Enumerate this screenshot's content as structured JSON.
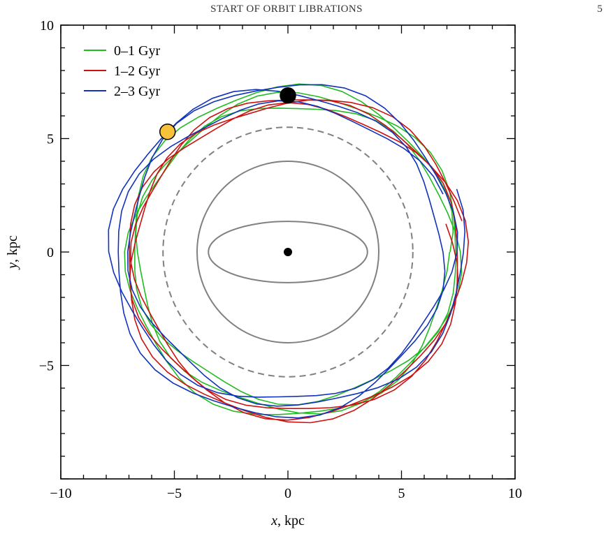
{
  "header": {
    "running_title": "START OF ORBIT LIBRATIONS",
    "page_number": "5"
  },
  "chart_data": {
    "type": "line",
    "xlabel_var": "x",
    "xlabel_unit": ", kpc",
    "ylabel_var": "y",
    "ylabel_unit": ", kpc",
    "xlim": [
      -10,
      10
    ],
    "ylim": [
      -10,
      10
    ],
    "xticks": [
      -10,
      -5,
      0,
      5,
      10
    ],
    "yticks": [
      -5,
      0,
      5,
      10
    ],
    "xtick_labels": [
      "−10",
      "−5",
      "0",
      "5",
      "10"
    ],
    "ytick_labels": [
      "−5",
      "0",
      "5",
      "10"
    ],
    "grid": false,
    "legend_position": "top-left",
    "series": [
      {
        "name": "0–1 Gyr",
        "color": "#22bb22",
        "orbit": {
          "radius_mean": 7.0,
          "libration_amplitude": 0.45,
          "libration_period_turns": 3.3,
          "phase": 0.0,
          "turns": 3.0,
          "ellipticity": 0.02
        }
      },
      {
        "name": "1–2 Gyr",
        "color": "#cc1111",
        "orbit": {
          "radius_mean": 7.1,
          "libration_amplitude": 0.55,
          "libration_period_turns": 3.6,
          "phase": 1.7,
          "turns": 3.0,
          "ellipticity": 0.03
        }
      },
      {
        "name": "2–3 Gyr",
        "color": "#1133bb",
        "orbit": {
          "radius_mean": 7.15,
          "libration_amplitude": 0.5,
          "libration_period_turns": 3.1,
          "phase": 3.4,
          "turns": 3.0,
          "ellipticity": 0.025
        }
      }
    ],
    "reference_curves": [
      {
        "kind": "ellipse",
        "center": [
          0,
          0
        ],
        "semi_x": 3.5,
        "semi_y": 1.35,
        "style": "solid",
        "color": "#808080"
      },
      {
        "kind": "circle",
        "center": [
          0,
          0
        ],
        "radius": 4.0,
        "style": "solid",
        "color": "#808080"
      },
      {
        "kind": "circle",
        "center": [
          0,
          0
        ],
        "radius": 5.5,
        "style": "dashed",
        "color": "#808080"
      }
    ],
    "markers": [
      {
        "label": "center",
        "x": 0,
        "y": 0,
        "color": "#000000",
        "size": "small"
      },
      {
        "label": "start-black",
        "x": 0,
        "y": 6.9,
        "color": "#000000",
        "size": "large"
      },
      {
        "label": "start-yellow",
        "x": -5.3,
        "y": 5.3,
        "color": "#f7c13c",
        "size": "large"
      }
    ]
  }
}
